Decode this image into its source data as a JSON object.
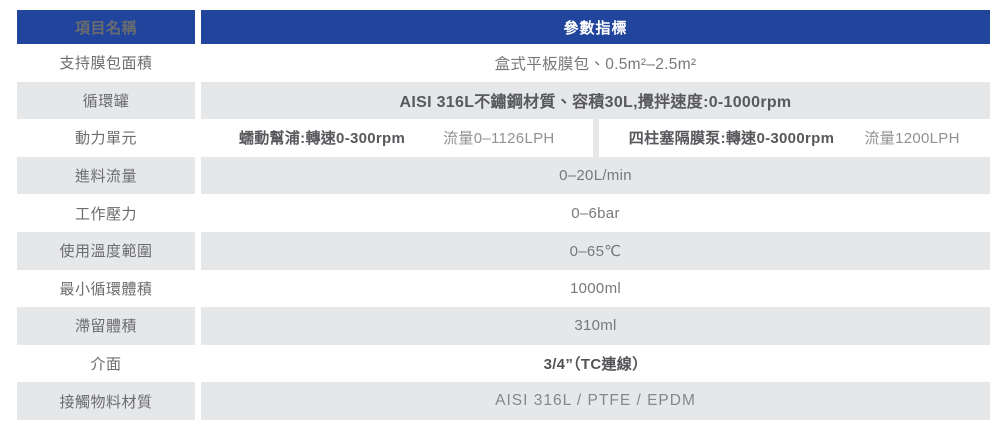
{
  "colors": {
    "header_bg": "#21459C",
    "header_text": "#FFFFFF",
    "row_alt_bg": "#E6E7E9",
    "label_text": "#6B6C6E",
    "value_text": "#77787A",
    "bold_value_text": "#58595C",
    "light_value_text": "#8F9193"
  },
  "table": {
    "header": {
      "item_column": "項目名稱",
      "param_column": "參數指標"
    },
    "rows": [
      {
        "label": "支持膜包面積",
        "value": "盒式平板膜包、0.5m²–2.5m²"
      },
      {
        "label": "循環罐",
        "value": "AISI 316L不鏽鋼材質、容積30L,攪拌速度:0-1000rpm"
      },
      {
        "label": "動力單元",
        "cells": {
          "pump1_spec": "蠕動幫浦:轉速0-300rpm",
          "pump1_flow": "流量0–1126LPH",
          "pump2_spec": "四柱塞隔膜泵:轉速0-3000rpm",
          "pump2_flow": "流量1200LPH"
        }
      },
      {
        "label": "進料流量",
        "value": "0–20L/min"
      },
      {
        "label": "工作壓力",
        "value": "0–6bar"
      },
      {
        "label": "使用溫度範圍",
        "value": "0–65℃"
      },
      {
        "label": "最小循環體積",
        "value": "1000ml"
      },
      {
        "label": "滯留體積",
        "value": "310ml"
      },
      {
        "label": "介面",
        "value": "3/4”（TC連線）"
      },
      {
        "label": "接觸物料材質",
        "value": "AISI 316L / PTFE / EPDM"
      }
    ]
  }
}
